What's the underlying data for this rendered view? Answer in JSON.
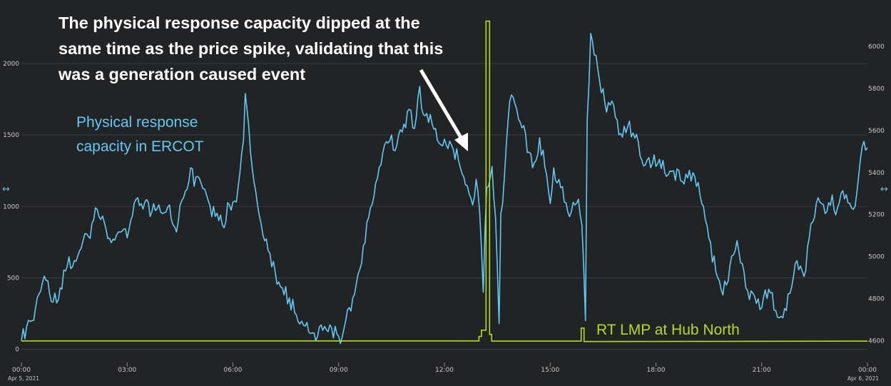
{
  "chart_data": {
    "type": "line",
    "title": "",
    "annotation": "The physical response capacity dipped at the same time as the price spike, validating that this was a generation caused event",
    "x": {
      "unit": "hours since Apr 5, 2021 00:00",
      "range": [
        0,
        24
      ],
      "ticks": [
        {
          "value": 0,
          "label": "00:00",
          "date": "Apr 5, 2021"
        },
        {
          "value": 3,
          "label": "03:00"
        },
        {
          "value": 6,
          "label": "06:00"
        },
        {
          "value": 9,
          "label": "09:00"
        },
        {
          "value": 12,
          "label": "12:00"
        },
        {
          "value": 15,
          "label": "15:00"
        },
        {
          "value": 18,
          "label": "18:00"
        },
        {
          "value": 21,
          "label": "21:00"
        },
        {
          "value": 24,
          "label": "00:00",
          "date": "Apr 6, 2021"
        }
      ]
    },
    "y_left": {
      "range": [
        0,
        2300
      ],
      "ticks": [
        0,
        500,
        1000,
        1500,
        2000
      ],
      "tick_labels": [
        "0",
        "500",
        "1000",
        "1500",
        "2000"
      ]
    },
    "y_right": {
      "range": [
        4570,
        6140
      ],
      "ticks": [
        4600,
        4800,
        5000,
        5200,
        5400,
        5600,
        5800,
        6000
      ],
      "tick_labels": [
        "4600",
        "4800",
        "5000",
        "5200",
        "5400",
        "5600",
        "5800",
        "6000"
      ]
    },
    "grid": true,
    "series": [
      {
        "name": "Physical response capacity in ERCOT",
        "axis": "left",
        "color": "#63c8f2",
        "points": [
          [
            0,
            60
          ],
          [
            0.15,
            160
          ],
          [
            0.3,
            200
          ],
          [
            0.45,
            360
          ],
          [
            0.6,
            470
          ],
          [
            0.75,
            480
          ],
          [
            0.9,
            330
          ],
          [
            1.1,
            430
          ],
          [
            1.3,
            580
          ],
          [
            1.5,
            620
          ],
          [
            1.7,
            710
          ],
          [
            1.9,
            790
          ],
          [
            2.0,
            880
          ],
          [
            2.1,
            990
          ],
          [
            2.2,
            930
          ],
          [
            2.4,
            840
          ],
          [
            2.6,
            770
          ],
          [
            2.8,
            820
          ],
          [
            3.0,
            780
          ],
          [
            3.1,
            900
          ],
          [
            3.3,
            1060
          ],
          [
            3.5,
            1030
          ],
          [
            3.7,
            960
          ],
          [
            3.9,
            1010
          ],
          [
            4.0,
            950
          ],
          [
            4.1,
            960
          ],
          [
            4.2,
            1010
          ],
          [
            4.3,
            870
          ],
          [
            4.4,
            820
          ],
          [
            4.55,
            1040
          ],
          [
            4.7,
            1120
          ],
          [
            4.8,
            1270
          ],
          [
            4.9,
            1140
          ],
          [
            5.0,
            1210
          ],
          [
            5.1,
            1160
          ],
          [
            5.3,
            1040
          ],
          [
            5.5,
            930
          ],
          [
            5.7,
            870
          ],
          [
            5.9,
            1010
          ],
          [
            6.1,
            1030
          ],
          [
            6.2,
            1240
          ],
          [
            6.3,
            1460
          ],
          [
            6.35,
            1790
          ],
          [
            6.45,
            1560
          ],
          [
            6.6,
            1170
          ],
          [
            6.8,
            880
          ],
          [
            7.0,
            690
          ],
          [
            7.2,
            540
          ],
          [
            7.4,
            430
          ],
          [
            7.6,
            360
          ],
          [
            7.8,
            240
          ],
          [
            8.0,
            170
          ],
          [
            8.2,
            110
          ],
          [
            8.4,
            90
          ],
          [
            8.6,
            160
          ],
          [
            8.8,
            150
          ],
          [
            9.0,
            90
          ],
          [
            9.05,
            40
          ],
          [
            9.2,
            200
          ],
          [
            9.4,
            360
          ],
          [
            9.6,
            560
          ],
          [
            9.8,
            890
          ],
          [
            10.0,
            1070
          ],
          [
            10.2,
            1290
          ],
          [
            10.3,
            1430
          ],
          [
            10.5,
            1500
          ],
          [
            10.6,
            1390
          ],
          [
            10.8,
            1520
          ],
          [
            11.0,
            1680
          ],
          [
            11.1,
            1550
          ],
          [
            11.2,
            1620
          ],
          [
            11.3,
            1840
          ],
          [
            11.35,
            1690
          ],
          [
            11.5,
            1650
          ],
          [
            11.7,
            1540
          ],
          [
            11.9,
            1430
          ],
          [
            12.0,
            1470
          ],
          [
            12.2,
            1430
          ],
          [
            12.4,
            1320
          ],
          [
            12.6,
            1150
          ],
          [
            12.8,
            1010
          ],
          [
            12.9,
            1190
          ],
          [
            13.0,
            960
          ],
          [
            13.1,
            400
          ],
          [
            13.2,
            1130
          ],
          [
            13.3,
            1200
          ],
          [
            13.35,
            1280
          ],
          [
            13.45,
            920
          ],
          [
            13.55,
            180
          ],
          [
            13.6,
            950
          ],
          [
            13.7,
            1200
          ],
          [
            13.8,
            1590
          ],
          [
            13.9,
            1780
          ],
          [
            14.0,
            1720
          ],
          [
            14.2,
            1550
          ],
          [
            14.4,
            1380
          ],
          [
            14.5,
            1270
          ],
          [
            14.7,
            1480
          ],
          [
            14.9,
            1220
          ],
          [
            15.0,
            1020
          ],
          [
            15.1,
            1270
          ],
          [
            15.3,
            1130
          ],
          [
            15.5,
            960
          ],
          [
            15.7,
            1010
          ],
          [
            15.8,
            1050
          ],
          [
            15.9,
            870
          ],
          [
            16.0,
            200
          ],
          [
            16.05,
            1600
          ],
          [
            16.15,
            2210
          ],
          [
            16.25,
            2060
          ],
          [
            16.4,
            1880
          ],
          [
            16.6,
            1660
          ],
          [
            16.8,
            1710
          ],
          [
            17.0,
            1510
          ],
          [
            17.2,
            1560
          ],
          [
            17.5,
            1450
          ],
          [
            17.7,
            1290
          ],
          [
            17.9,
            1300
          ],
          [
            18.1,
            1330
          ],
          [
            18.3,
            1210
          ],
          [
            18.5,
            1250
          ],
          [
            18.7,
            1180
          ],
          [
            18.9,
            1200
          ],
          [
            19.1,
            1210
          ],
          [
            19.3,
            1020
          ],
          [
            19.5,
            780
          ],
          [
            19.7,
            540
          ],
          [
            19.9,
            380
          ],
          [
            20.1,
            590
          ],
          [
            20.3,
            760
          ],
          [
            20.5,
            540
          ],
          [
            20.6,
            410
          ],
          [
            20.8,
            370
          ],
          [
            21.0,
            290
          ],
          [
            21.2,
            420
          ],
          [
            21.4,
            270
          ],
          [
            21.6,
            220
          ],
          [
            21.8,
            390
          ],
          [
            22.0,
            620
          ],
          [
            22.2,
            510
          ],
          [
            22.4,
            880
          ],
          [
            22.6,
            1060
          ],
          [
            22.8,
            950
          ],
          [
            23.0,
            1080
          ],
          [
            23.1,
            940
          ],
          [
            23.3,
            1110
          ],
          [
            23.5,
            1020
          ],
          [
            23.6,
            980
          ],
          [
            23.7,
            1100
          ],
          [
            23.85,
            1420
          ],
          [
            24.0,
            1410
          ]
        ]
      },
      {
        "name": "RT LMP at Hub North",
        "axis": "right",
        "color": "#b4dc1e",
        "points": [
          [
            0,
            4599
          ],
          [
            12.98,
            4599
          ],
          [
            12.98,
            4620
          ],
          [
            13.05,
            4620
          ],
          [
            13.05,
            4650
          ],
          [
            13.18,
            4650
          ],
          [
            13.18,
            6120
          ],
          [
            13.28,
            6120
          ],
          [
            13.28,
            4630
          ],
          [
            13.34,
            4630
          ],
          [
            13.34,
            4598
          ],
          [
            15.88,
            4598
          ],
          [
            15.88,
            4660
          ],
          [
            15.96,
            4660
          ],
          [
            15.96,
            4596
          ],
          [
            24.0,
            4598
          ]
        ]
      }
    ],
    "labels": {
      "blue": "Physical response capacity in ERCOT",
      "green": "RT LMP at Hub North"
    }
  }
}
